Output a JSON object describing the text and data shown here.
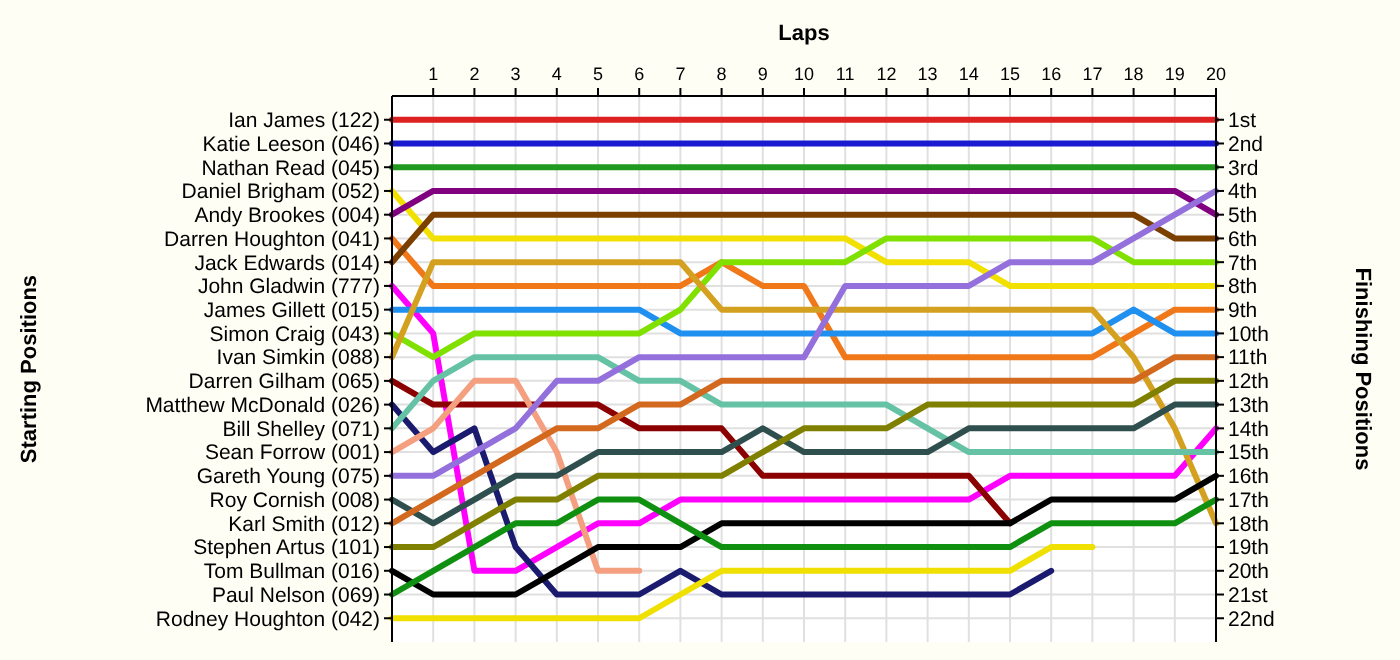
{
  "chart_data": {
    "type": "line",
    "xlabel": "Laps",
    "y2label": "Finishing Positions",
    "grid": true,
    "line_style": "solid",
    "x": [
      0,
      1,
      2,
      3,
      4,
      5,
      6,
      7,
      8,
      9,
      10,
      11,
      12,
      13,
      14,
      15,
      16,
      17,
      18,
      19,
      20
    ],
    "xlim": [
      0,
      20
    ],
    "xticks": [
      1,
      2,
      3,
      4,
      5,
      6,
      7,
      8,
      9,
      10,
      11,
      12,
      13,
      14,
      15,
      16,
      17,
      18,
      19,
      20
    ],
    "annotations": [
      "Starting Positions",
      "Ian James (122)",
      "Katie Leeson (046)",
      "Nathan Read (045)",
      "Daniel Brigham (052)",
      "Andy Brookes (004)",
      "Darren Houghton (041)",
      "Jack Edwards (014)",
      "John Gladwin (777)",
      "James Gillett (015)",
      "Simon Craig (043)",
      "Ivan Simkin (088)",
      "Darren Gilham (065)",
      "Matthew McDonald (026)",
      "Bill Shelley (071)",
      "Sean Forrow (001)",
      "Gareth Young (075)",
      "Roy Cornish (008)",
      "Karl Smith (012)",
      "Stephen Artus (101)",
      "Tom Bullman (016)",
      "Paul Nelson (069)",
      "Rodney Houghton (042)"
    ],
    "y2lim": [
      23,
      0
    ],
    "y2ticks": [
      {
        "value": 1,
        "label": "1st"
      },
      {
        "value": 2,
        "label": "2nd"
      },
      {
        "value": 3,
        "label": "3rd"
      },
      {
        "value": 4,
        "label": "4th"
      },
      {
        "value": 5,
        "label": "5th"
      },
      {
        "value": 6,
        "label": "6th"
      },
      {
        "value": 7,
        "label": "7th"
      },
      {
        "value": 8,
        "label": "8th"
      },
      {
        "value": 9,
        "label": "9th"
      },
      {
        "value": 10,
        "label": "10th"
      },
      {
        "value": 11,
        "label": "11th"
      },
      {
        "value": 12,
        "label": "12th"
      },
      {
        "value": 13,
        "label": "13th"
      },
      {
        "value": 14,
        "label": "14th"
      },
      {
        "value": 15,
        "label": "15th"
      },
      {
        "value": 16,
        "label": "16th"
      },
      {
        "value": 17,
        "label": "17th"
      },
      {
        "value": 18,
        "label": "18th"
      },
      {
        "value": 19,
        "label": "19th"
      },
      {
        "value": 20,
        "label": "20th"
      },
      {
        "value": 21,
        "label": "21st"
      },
      {
        "value": 22,
        "label": "22nd"
      }
    ],
    "series": [
      {
        "axis": "y2",
        "color": "#dd2020",
        "values": [
          1,
          1,
          1,
          1,
          1,
          1,
          1,
          1,
          1,
          1,
          1,
          1,
          1,
          1,
          1,
          1,
          1,
          1,
          1,
          1,
          1
        ]
      },
      {
        "axis": "y2",
        "color": "#1a1ad0",
        "values": [
          2,
          2,
          2,
          2,
          2,
          2,
          2,
          2,
          2,
          2,
          2,
          2,
          2,
          2,
          2,
          2,
          2,
          2,
          2,
          2,
          2
        ]
      },
      {
        "axis": "y2",
        "color": "#1f9a1f",
        "values": [
          3,
          3,
          3,
          3,
          3,
          3,
          3,
          3,
          3,
          3,
          3,
          3,
          3,
          3,
          3,
          3,
          3,
          3,
          3,
          3,
          3
        ]
      },
      {
        "axis": "y2",
        "color": "#f2e000",
        "values": [
          4,
          6,
          6,
          6,
          6,
          6,
          6,
          6,
          6,
          6,
          6,
          6,
          7,
          7,
          7,
          8,
          8,
          8,
          8,
          8,
          8
        ]
      },
      {
        "axis": "y2",
        "color": "#800080",
        "values": [
          5,
          4,
          4,
          4,
          4,
          4,
          4,
          4,
          4,
          4,
          4,
          4,
          4,
          4,
          4,
          4,
          4,
          4,
          4,
          4,
          5
        ]
      },
      {
        "axis": "y2",
        "color": "#f07818",
        "values": [
          6,
          8,
          8,
          8,
          8,
          8,
          8,
          8,
          7,
          8,
          8,
          11,
          11,
          11,
          11,
          11,
          11,
          11,
          10,
          9,
          9
        ]
      },
      {
        "axis": "y2",
        "color": "#7b3f00",
        "values": [
          7,
          5,
          5,
          5,
          5,
          5,
          5,
          5,
          5,
          5,
          5,
          5,
          5,
          5,
          5,
          5,
          5,
          5,
          5,
          6,
          6
        ]
      },
      {
        "axis": "y2",
        "color": "#ff00ff",
        "values": [
          8,
          10,
          20,
          20,
          19,
          18,
          18,
          17,
          17,
          17,
          17,
          17,
          17,
          17,
          17,
          16,
          16,
          16,
          16,
          16,
          14
        ]
      },
      {
        "axis": "y2",
        "color": "#2090f0",
        "values": [
          9,
          9,
          9,
          9,
          9,
          9,
          9,
          10,
          10,
          10,
          10,
          10,
          10,
          10,
          10,
          10,
          10,
          10,
          9,
          10,
          10
        ]
      },
      {
        "axis": "y2",
        "color": "#80e000",
        "values": [
          10,
          11,
          10,
          10,
          10,
          10,
          10,
          9,
          7,
          7,
          7,
          7,
          6,
          6,
          6,
          6,
          6,
          6,
          7,
          7,
          7
        ]
      },
      {
        "axis": "y2",
        "color": "#d4a020",
        "values": [
          11,
          7,
          7,
          7,
          7,
          7,
          7,
          7,
          9,
          9,
          9,
          9,
          9,
          9,
          9,
          9,
          9,
          9,
          11,
          14,
          18
        ]
      },
      {
        "axis": "y2",
        "color": "#8b0000",
        "values": [
          12,
          13,
          13,
          13,
          13,
          13,
          14,
          14,
          14,
          16,
          16,
          16,
          16,
          16,
          16,
          18,
          null,
          null,
          null,
          null,
          null
        ]
      },
      {
        "axis": "y2",
        "color": "#1a1a6e",
        "values": [
          13,
          15,
          14,
          19,
          21,
          21,
          21,
          20,
          21,
          21,
          21,
          21,
          21,
          21,
          21,
          21,
          20,
          null,
          null,
          null,
          null
        ]
      },
      {
        "axis": "y2",
        "color": "#66c2a5",
        "values": [
          14,
          12,
          11,
          11,
          11,
          11,
          12,
          12,
          13,
          13,
          13,
          13,
          13,
          14,
          15,
          15,
          15,
          15,
          15,
          15,
          15
        ]
      },
      {
        "axis": "y2",
        "color": "#f4a080",
        "values": [
          15,
          14,
          12,
          12,
          15,
          20,
          20,
          null,
          null,
          null,
          null,
          null,
          null,
          null,
          null,
          null,
          null,
          null,
          null,
          null,
          null
        ]
      },
      {
        "axis": "y2",
        "color": "#9370db",
        "values": [
          16,
          16,
          15,
          14,
          12,
          12,
          11,
          11,
          11,
          11,
          11,
          8,
          8,
          8,
          8,
          7,
          7,
          7,
          6,
          5,
          4
        ]
      },
      {
        "axis": "y2",
        "color": "#2f4f4f",
        "values": [
          17,
          18,
          17,
          16,
          16,
          15,
          15,
          15,
          15,
          14,
          15,
          15,
          15,
          15,
          14,
          14,
          14,
          14,
          14,
          13,
          13
        ]
      },
      {
        "axis": "y2",
        "color": "#d2691e",
        "values": [
          18,
          17,
          16,
          15,
          14,
          14,
          13,
          13,
          12,
          12,
          12,
          12,
          12,
          12,
          12,
          12,
          12,
          12,
          12,
          11,
          11
        ]
      },
      {
        "axis": "y2",
        "color": "#808000",
        "values": [
          19,
          19,
          18,
          17,
          17,
          16,
          16,
          16,
          16,
          15,
          14,
          14,
          14,
          13,
          13,
          13,
          13,
          13,
          13,
          12,
          12
        ]
      },
      {
        "axis": "y2",
        "color": "#000000",
        "values": [
          20,
          21,
          21,
          21,
          20,
          19,
          19,
          19,
          18,
          18,
          18,
          18,
          18,
          18,
          18,
          18,
          17,
          17,
          17,
          17,
          16
        ]
      },
      {
        "axis": "y2",
        "color": "#109010",
        "values": [
          21,
          20,
          19,
          18,
          18,
          17,
          17,
          18,
          19,
          19,
          19,
          19,
          19,
          19,
          19,
          19,
          18,
          18,
          18,
          18,
          17
        ]
      },
      {
        "axis": "y2",
        "color": "#f0e000",
        "values": [
          22,
          22,
          22,
          22,
          22,
          22,
          22,
          21,
          20,
          20,
          20,
          20,
          20,
          20,
          20,
          20,
          19,
          19,
          null,
          null,
          null
        ]
      }
    ]
  }
}
